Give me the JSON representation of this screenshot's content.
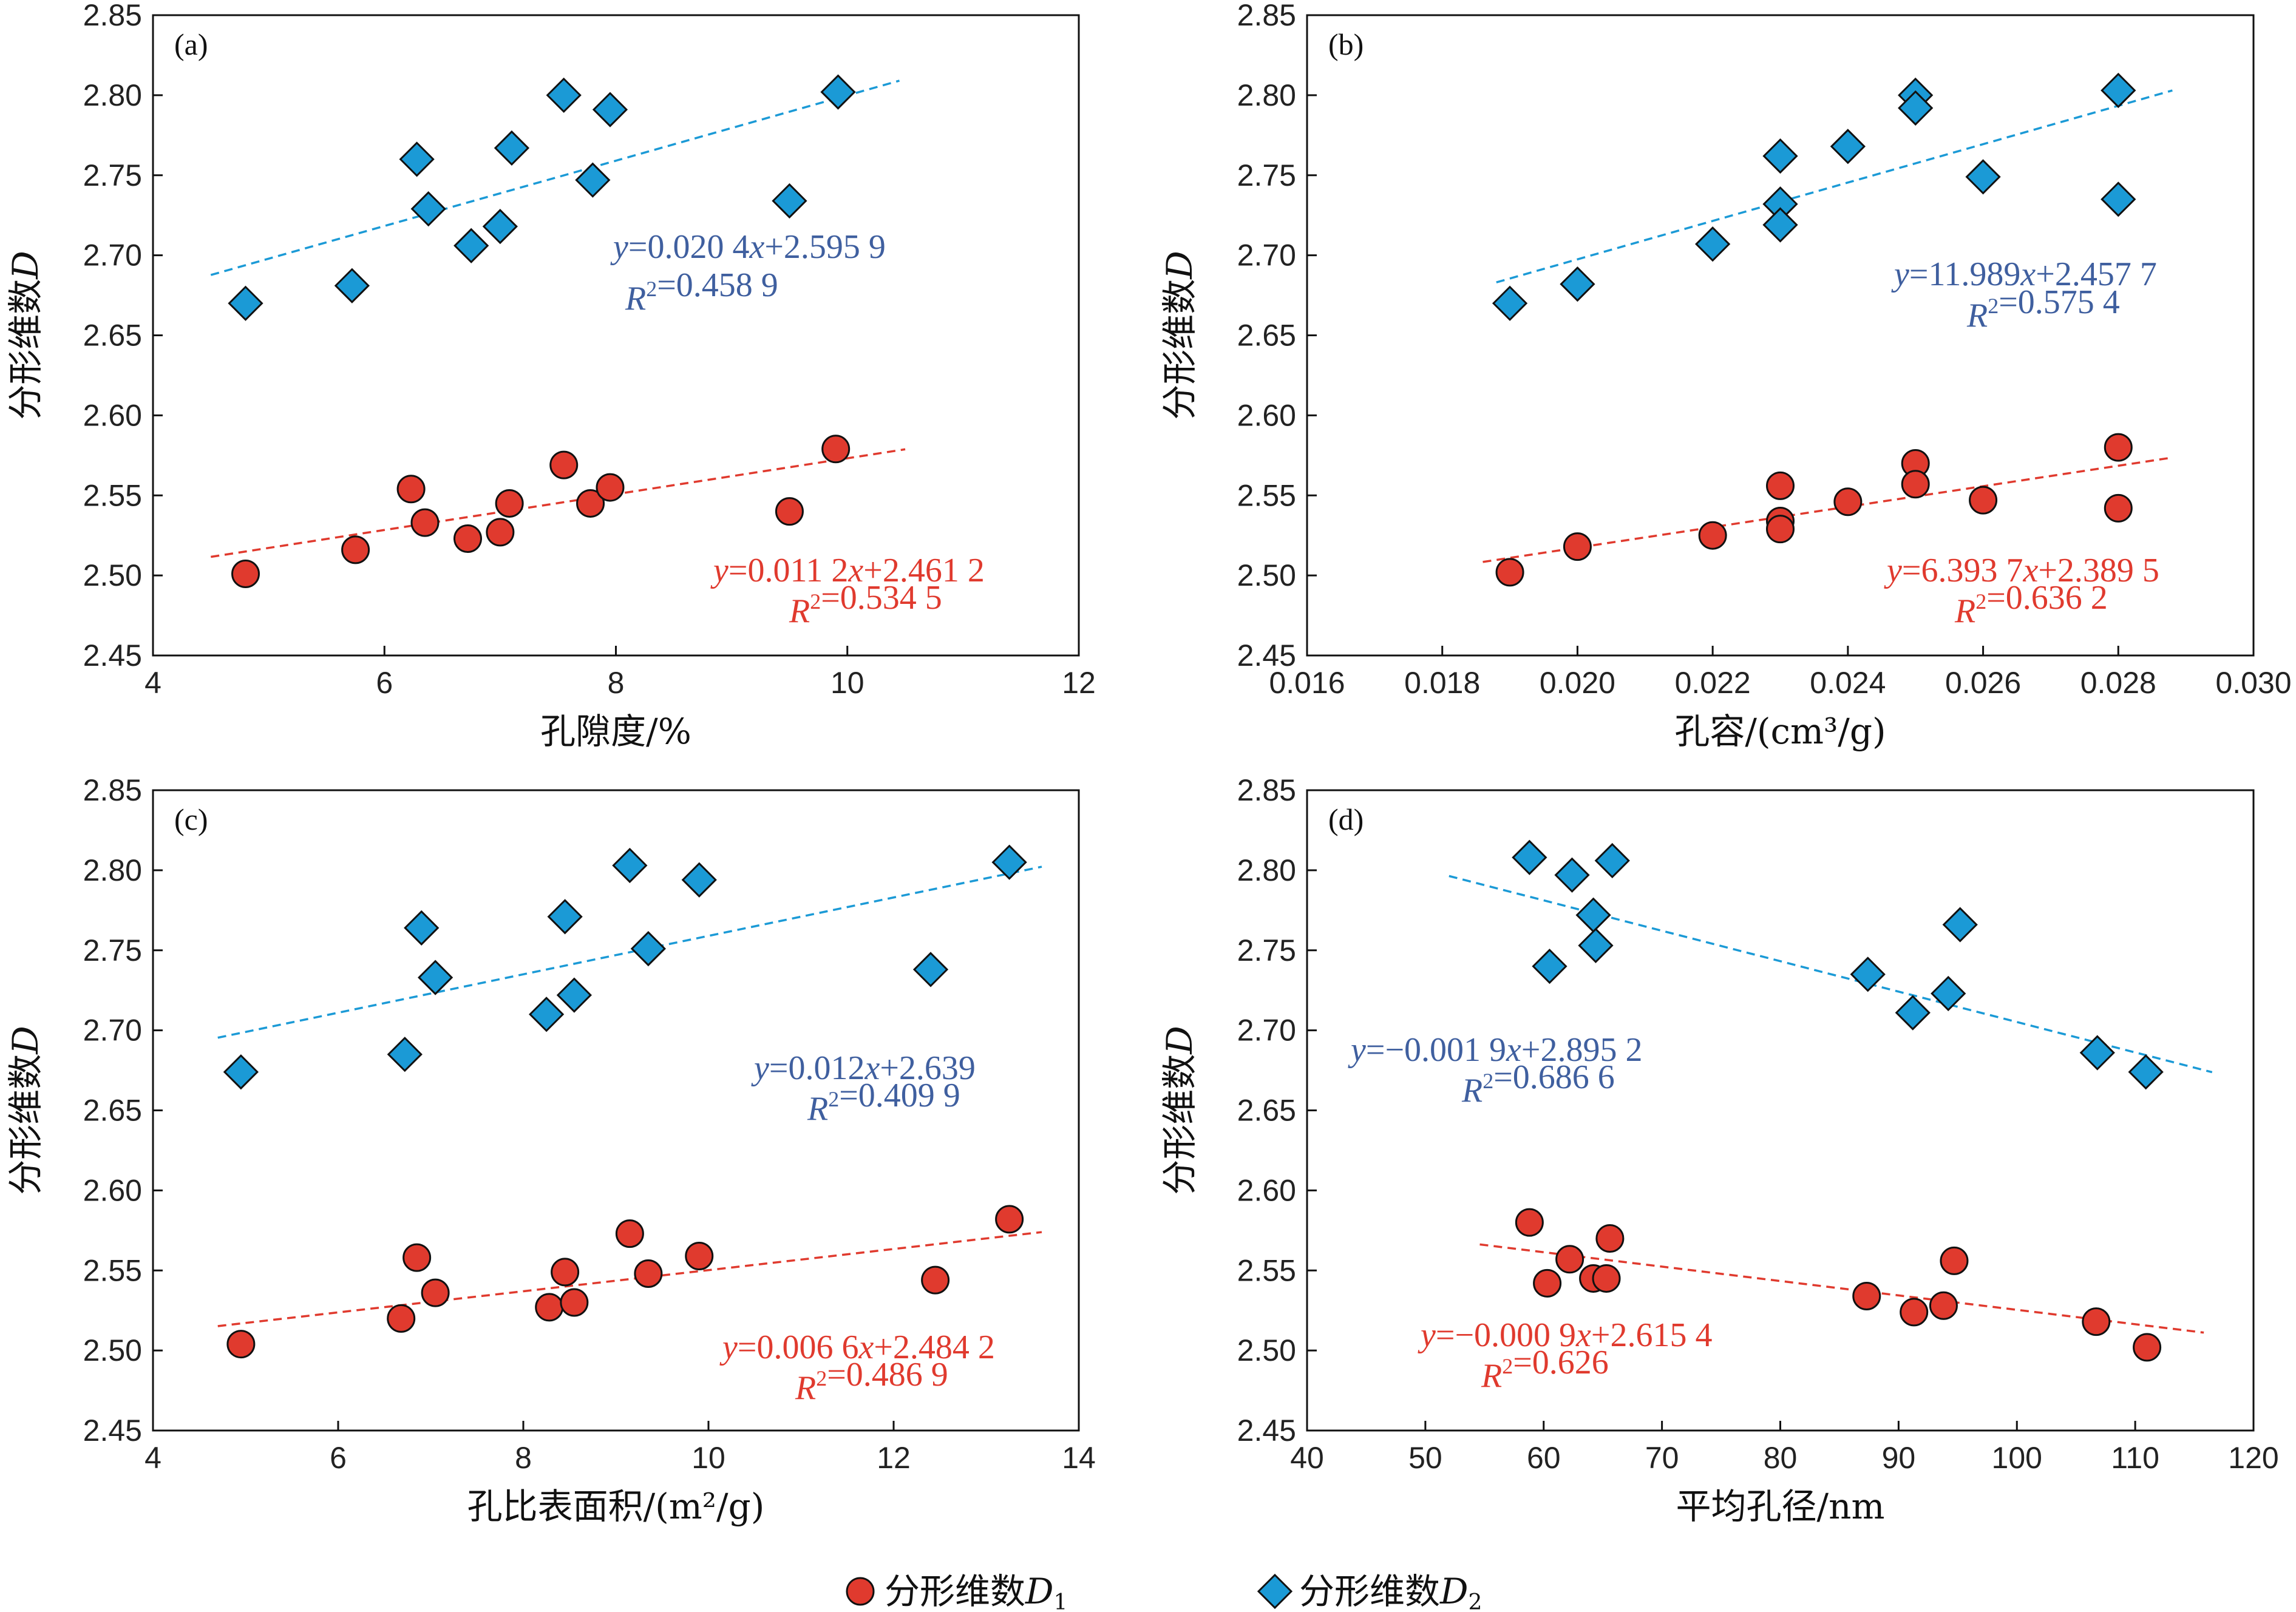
{
  "colors": {
    "d1": "#e03a2e",
    "d2": "#1b9ad6",
    "d1_eq": "#e03a2e",
    "d2_eq": "#3f5f9f",
    "d1_line": "#e03a2e",
    "d2_line": "#1b9ad6"
  },
  "legend": {
    "d1_label": "分形维数",
    "d1_sub": "D",
    "d1_subidx": "1",
    "d2_label": "分形维数",
    "d2_sub": "D",
    "d2_subidx": "2"
  },
  "chart_data": [
    {
      "panel_label": "(a)",
      "type": "scatter",
      "xlabel": "孔隙度/%",
      "ylabel": "分形维数",
      "ylabel_italic": "D",
      "xlim": [
        4,
        12
      ],
      "ylim": [
        2.45,
        2.85
      ],
      "xticks": [
        4,
        6,
        8,
        10,
        12
      ],
      "xtick_labels": [
        "4",
        "6",
        "8",
        "10",
        "12"
      ],
      "yticks": [
        2.45,
        2.5,
        2.55,
        2.6,
        2.65,
        2.7,
        2.75,
        2.8,
        2.85
      ],
      "ytick_labels": [
        "2.45",
        "2.50",
        "2.55",
        "2.60",
        "2.65",
        "2.70",
        "2.75",
        "2.80",
        "2.85"
      ],
      "series": [
        {
          "id": "D1",
          "marker": "circle",
          "x": [
            4.8,
            5.75,
            6.23,
            6.35,
            6.72,
            7.0,
            7.08,
            7.55,
            7.78,
            7.95,
            9.5,
            9.9
          ],
          "y": [
            2.501,
            2.516,
            2.554,
            2.533,
            2.523,
            2.527,
            2.545,
            2.569,
            2.545,
            2.555,
            2.54,
            2.579
          ],
          "fit": {
            "x": [
              4.5,
              10.5
            ],
            "slope": 0.0112,
            "intercept": 2.4612
          },
          "equation": "y=0.011 2x+2.461 2",
          "r2": "R²=0.534 5"
        },
        {
          "id": "D2",
          "marker": "diamond",
          "x": [
            4.8,
            5.72,
            6.28,
            6.38,
            6.75,
            7.0,
            7.1,
            7.55,
            7.8,
            7.95,
            9.5,
            9.92
          ],
          "y": [
            2.67,
            2.681,
            2.76,
            2.729,
            2.706,
            2.718,
            2.767,
            2.8,
            2.747,
            2.791,
            2.734,
            2.802
          ],
          "fit": {
            "x": [
              4.5,
              10.45
            ],
            "slope": 0.0204,
            "intercept": 2.5959
          },
          "equation": "y=0.020 4x+2.595 9",
          "r2": "R²=0.458 9"
        }
      ]
    },
    {
      "panel_label": "(b)",
      "type": "scatter",
      "xlabel": "孔容/(cm³/g)",
      "ylabel": "分形维数",
      "ylabel_italic": "D",
      "xlim": [
        0.016,
        0.03
      ],
      "ylim": [
        2.45,
        2.85
      ],
      "xticks": [
        0.016,
        0.018,
        0.02,
        0.022,
        0.024,
        0.026,
        0.028,
        0.03
      ],
      "xtick_labels": [
        "0.016",
        "0.018",
        "0.020",
        "0.022",
        "0.024",
        "0.026",
        "0.028",
        "0.030"
      ],
      "yticks": [
        2.45,
        2.5,
        2.55,
        2.6,
        2.65,
        2.7,
        2.75,
        2.8,
        2.85
      ],
      "ytick_labels": [
        "2.45",
        "2.50",
        "2.55",
        "2.60",
        "2.65",
        "2.70",
        "2.75",
        "2.80",
        "2.85"
      ],
      "series": [
        {
          "id": "D1",
          "marker": "circle",
          "x": [
            0.019,
            0.02,
            0.022,
            0.023,
            0.023,
            0.023,
            0.024,
            0.025,
            0.025,
            0.026,
            0.028,
            0.028
          ],
          "y": [
            2.502,
            2.518,
            2.525,
            2.556,
            2.534,
            2.529,
            2.546,
            2.57,
            2.557,
            2.547,
            2.58,
            2.542
          ],
          "fit": {
            "x": [
              0.0186,
              0.0288
            ],
            "slope": 6.3937,
            "intercept": 2.3895
          },
          "equation": "y=6.393 7x+2.389 5",
          "r2": "R²=0.636 2"
        },
        {
          "id": "D2",
          "marker": "diamond",
          "x": [
            0.019,
            0.02,
            0.022,
            0.023,
            0.023,
            0.023,
            0.024,
            0.025,
            0.025,
            0.026,
            0.028,
            0.028
          ],
          "y": [
            2.67,
            2.682,
            2.707,
            2.762,
            2.732,
            2.719,
            2.768,
            2.8,
            2.792,
            2.749,
            2.803,
            2.735
          ],
          "fit": {
            "x": [
              0.0188,
              0.0288
            ],
            "slope": 11.989,
            "intercept": 2.4577
          },
          "equation": "y=11.989x+2.457 7",
          "r2": "R²=0.575 4"
        }
      ]
    },
    {
      "panel_label": "(c)",
      "type": "scatter",
      "xlabel": "孔比表面积/(m²/g)",
      "ylabel": "分形维数",
      "ylabel_italic": "D",
      "xlim": [
        4,
        14
      ],
      "ylim": [
        2.45,
        2.85
      ],
      "xticks": [
        4,
        6,
        8,
        10,
        12,
        14
      ],
      "xtick_labels": [
        "4",
        "6",
        "8",
        "10",
        "12",
        "14"
      ],
      "yticks": [
        2.45,
        2.5,
        2.55,
        2.6,
        2.65,
        2.7,
        2.75,
        2.8,
        2.85
      ],
      "ytick_labels": [
        "2.45",
        "2.50",
        "2.55",
        "2.60",
        "2.65",
        "2.70",
        "2.75",
        "2.80",
        "2.85"
      ],
      "series": [
        {
          "id": "D1",
          "marker": "circle",
          "x": [
            4.95,
            6.68,
            6.85,
            7.05,
            8.28,
            8.45,
            8.55,
            9.15,
            9.35,
            9.9,
            12.45,
            13.25
          ],
          "y": [
            2.504,
            2.52,
            2.558,
            2.536,
            2.527,
            2.549,
            2.53,
            2.573,
            2.548,
            2.559,
            2.544,
            2.582
          ],
          "fit": {
            "x": [
              4.7,
              13.6
            ],
            "slope": 0.0066,
            "intercept": 2.4842
          },
          "equation": "y=0.006 6x+2.484 2",
          "r2": "R²=0.486 9"
        },
        {
          "id": "D2",
          "marker": "diamond",
          "x": [
            4.95,
            6.72,
            6.9,
            7.05,
            8.25,
            8.45,
            8.55,
            9.15,
            9.35,
            9.9,
            12.4,
            13.25
          ],
          "y": [
            2.674,
            2.685,
            2.764,
            2.733,
            2.71,
            2.771,
            2.722,
            2.803,
            2.751,
            2.794,
            2.738,
            2.805
          ],
          "fit": {
            "x": [
              4.7,
              13.6
            ],
            "slope": 0.012,
            "intercept": 2.639
          },
          "equation": "y=0.012x+2.639",
          "r2": "R²=0.409 9"
        }
      ]
    },
    {
      "panel_label": "(d)",
      "type": "scatter",
      "xlabel": "平均孔径/nm",
      "ylabel": "分形维数",
      "ylabel_italic": "D",
      "xlim": [
        40,
        120
      ],
      "ylim": [
        2.45,
        2.85
      ],
      "xticks": [
        40,
        50,
        60,
        70,
        80,
        90,
        100,
        110,
        120
      ],
      "xtick_labels": [
        "40",
        "50",
        "60",
        "70",
        "80",
        "90",
        "100",
        "110",
        "120"
      ],
      "yticks": [
        2.45,
        2.5,
        2.55,
        2.6,
        2.65,
        2.7,
        2.75,
        2.8,
        2.85
      ],
      "ytick_labels": [
        "2.45",
        "2.50",
        "2.55",
        "2.60",
        "2.65",
        "2.70",
        "2.75",
        "2.80",
        "2.85"
      ],
      "series": [
        {
          "id": "D1",
          "marker": "circle",
          "x": [
            58.8,
            60.3,
            62.2,
            64.2,
            65.3,
            65.6,
            87.3,
            91.3,
            93.8,
            94.7,
            106.7,
            111.0
          ],
          "y": [
            2.58,
            2.542,
            2.557,
            2.545,
            2.545,
            2.57,
            2.534,
            2.524,
            2.528,
            2.556,
            2.518,
            2.502
          ],
          "fit": {
            "x": [
              54.6,
              115.8
            ],
            "slope": -0.0009,
            "intercept": 2.6154
          },
          "equation": "y=−0.000 9x+2.615 4",
          "r2": "R²=0.626"
        },
        {
          "id": "D2",
          "marker": "diamond",
          "x": [
            58.8,
            60.5,
            62.4,
            64.2,
            64.4,
            65.8,
            87.4,
            91.2,
            94.2,
            95.2,
            106.8,
            110.9
          ],
          "y": [
            2.808,
            2.74,
            2.797,
            2.772,
            2.753,
            2.806,
            2.735,
            2.711,
            2.723,
            2.766,
            2.686,
            2.674
          ],
          "fit": {
            "x": [
              52.0,
              116.5
            ],
            "slope": -0.0019,
            "intercept": 2.8952
          },
          "equation": "y=−0.001 9x+2.895 2",
          "r2": "R²=0.686 6"
        }
      ]
    }
  ]
}
